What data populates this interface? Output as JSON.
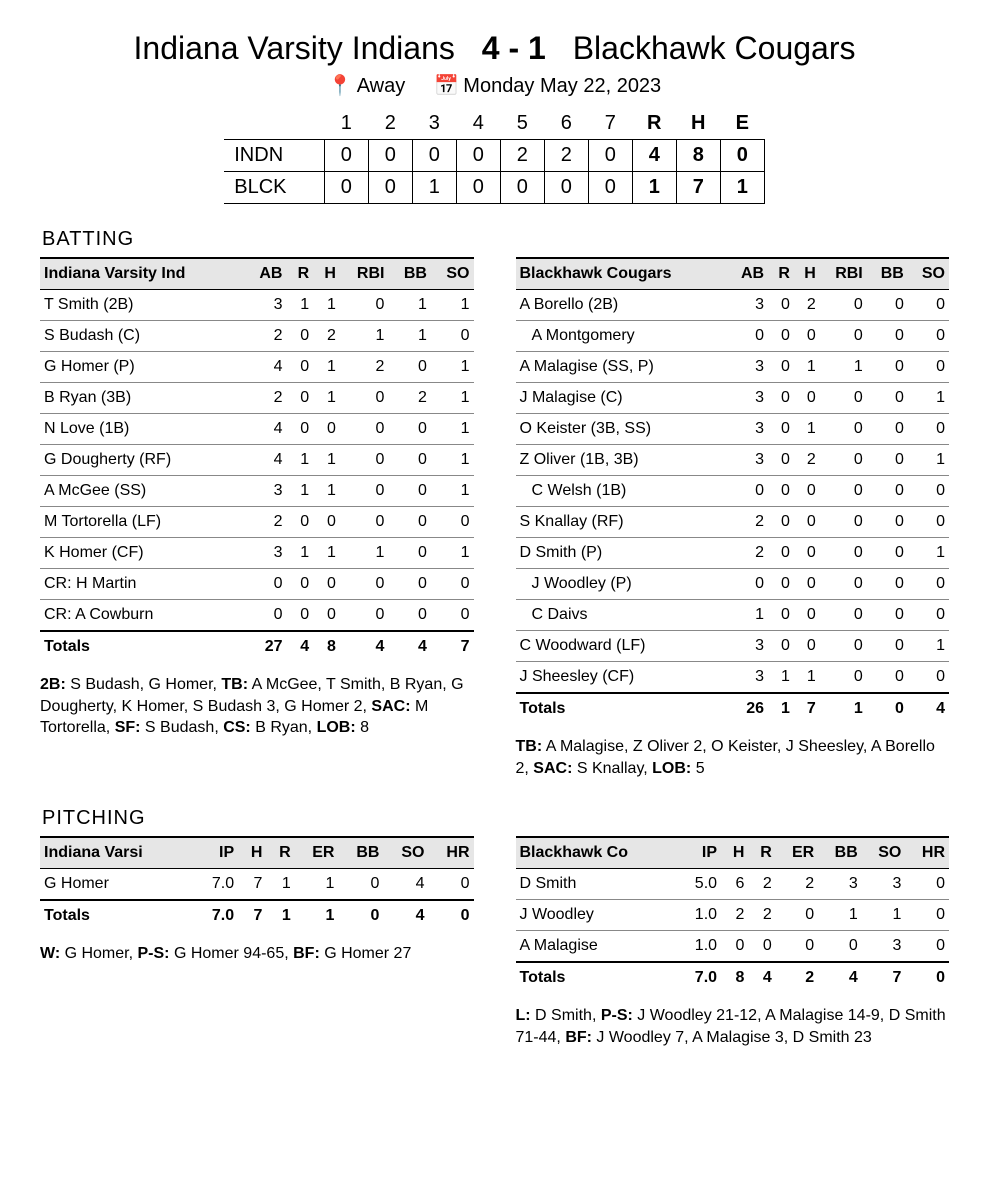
{
  "header": {
    "away_team": "Indiana Varsity Indians",
    "score": "4 - 1",
    "home_team": "Blackhawk Cougars",
    "location_label": "Away",
    "date_label": "Monday May 22, 2023"
  },
  "linescore": {
    "inning_headers": [
      "1",
      "2",
      "3",
      "4",
      "5",
      "6",
      "7"
    ],
    "rhe_headers": [
      "R",
      "H",
      "E"
    ],
    "rows": [
      {
        "code": "INDN",
        "innings": [
          "0",
          "0",
          "0",
          "0",
          "2",
          "2",
          "0"
        ],
        "rhe": [
          "4",
          "8",
          "0"
        ]
      },
      {
        "code": "BLCK",
        "innings": [
          "0",
          "0",
          "1",
          "0",
          "0",
          "0",
          "0"
        ],
        "rhe": [
          "1",
          "7",
          "1"
        ]
      }
    ]
  },
  "batting_title": "BATTING",
  "batting_columns": [
    "AB",
    "R",
    "H",
    "RBI",
    "BB",
    "SO"
  ],
  "batting": {
    "away": {
      "team_label": "Indiana Varsity Ind",
      "rows": [
        {
          "name": "T Smith (2B)",
          "v": [
            "3",
            "1",
            "1",
            "0",
            "1",
            "1"
          ]
        },
        {
          "name": "S Budash (C)",
          "v": [
            "2",
            "0",
            "2",
            "1",
            "1",
            "0"
          ]
        },
        {
          "name": "G Homer (P)",
          "v": [
            "4",
            "0",
            "1",
            "2",
            "0",
            "1"
          ]
        },
        {
          "name": "B Ryan (3B)",
          "v": [
            "2",
            "0",
            "1",
            "0",
            "2",
            "1"
          ]
        },
        {
          "name": "N Love (1B)",
          "v": [
            "4",
            "0",
            "0",
            "0",
            "0",
            "1"
          ]
        },
        {
          "name": "G Dougherty (RF)",
          "v": [
            "4",
            "1",
            "1",
            "0",
            "0",
            "1"
          ]
        },
        {
          "name": "A McGee (SS)",
          "v": [
            "3",
            "1",
            "1",
            "0",
            "0",
            "1"
          ]
        },
        {
          "name": "M Tortorella (LF)",
          "v": [
            "2",
            "0",
            "0",
            "0",
            "0",
            "0"
          ]
        },
        {
          "name": "K Homer (CF)",
          "v": [
            "3",
            "1",
            "1",
            "1",
            "0",
            "1"
          ]
        },
        {
          "name": "CR: H Martin",
          "v": [
            "0",
            "0",
            "0",
            "0",
            "0",
            "0"
          ]
        },
        {
          "name": "CR: A Cowburn",
          "v": [
            "0",
            "0",
            "0",
            "0",
            "0",
            "0"
          ]
        }
      ],
      "totals_label": "Totals",
      "totals": [
        "27",
        "4",
        "8",
        "4",
        "4",
        "7"
      ],
      "notes_html": "<b>2B:</b> S Budash, G Homer, <b>TB:</b> A McGee, T Smith, B Ryan, G Dougherty, K Homer, S Budash 3, G Homer 2, <b>SAC:</b> M Tortorella, <b>SF:</b> S Budash, <b>CS:</b> B Ryan, <b>LOB:</b> 8"
    },
    "home": {
      "team_label": "Blackhawk Cougars",
      "rows": [
        {
          "name": "A Borello (2B)",
          "v": [
            "3",
            "0",
            "2",
            "0",
            "0",
            "0"
          ]
        },
        {
          "name": "A Montgomery",
          "v": [
            "0",
            "0",
            "0",
            "0",
            "0",
            "0"
          ],
          "indent": true
        },
        {
          "name": "A Malagise (SS, P)",
          "v": [
            "3",
            "0",
            "1",
            "1",
            "0",
            "0"
          ]
        },
        {
          "name": "J Malagise (C)",
          "v": [
            "3",
            "0",
            "0",
            "0",
            "0",
            "1"
          ]
        },
        {
          "name": "O Keister (3B, SS)",
          "v": [
            "3",
            "0",
            "1",
            "0",
            "0",
            "0"
          ]
        },
        {
          "name": "Z Oliver (1B, 3B)",
          "v": [
            "3",
            "0",
            "2",
            "0",
            "0",
            "1"
          ]
        },
        {
          "name": "C Welsh (1B)",
          "v": [
            "0",
            "0",
            "0",
            "0",
            "0",
            "0"
          ],
          "indent": true
        },
        {
          "name": "S Knallay (RF)",
          "v": [
            "2",
            "0",
            "0",
            "0",
            "0",
            "0"
          ]
        },
        {
          "name": "D Smith (P)",
          "v": [
            "2",
            "0",
            "0",
            "0",
            "0",
            "1"
          ]
        },
        {
          "name": "J Woodley (P)",
          "v": [
            "0",
            "0",
            "0",
            "0",
            "0",
            "0"
          ],
          "indent": true
        },
        {
          "name": "C Daivs",
          "v": [
            "1",
            "0",
            "0",
            "0",
            "0",
            "0"
          ],
          "indent": true
        },
        {
          "name": "C Woodward (LF)",
          "v": [
            "3",
            "0",
            "0",
            "0",
            "0",
            "1"
          ]
        },
        {
          "name": "J Sheesley (CF)",
          "v": [
            "3",
            "1",
            "1",
            "0",
            "0",
            "0"
          ]
        }
      ],
      "totals_label": "Totals",
      "totals": [
        "26",
        "1",
        "7",
        "1",
        "0",
        "4"
      ],
      "notes_html": "<b>TB:</b> A Malagise, Z Oliver 2, O Keister, J Sheesley, A Borello 2, <b>SAC:</b> S Knallay, <b>LOB:</b> 5"
    }
  },
  "pitching_title": "PITCHING",
  "pitching_columns": [
    "IP",
    "H",
    "R",
    "ER",
    "BB",
    "SO",
    "HR"
  ],
  "pitching": {
    "away": {
      "team_label": "Indiana Varsi",
      "rows": [
        {
          "name": "G Homer",
          "v": [
            "7.0",
            "7",
            "1",
            "1",
            "0",
            "4",
            "0"
          ]
        }
      ],
      "totals_label": "Totals",
      "totals": [
        "7.0",
        "7",
        "1",
        "1",
        "0",
        "4",
        "0"
      ],
      "notes_html": "<b>W:</b> G Homer, <b>P-S:</b> G Homer 94-65, <b>BF:</b> G Homer 27"
    },
    "home": {
      "team_label": "Blackhawk Co",
      "rows": [
        {
          "name": "D Smith",
          "v": [
            "5.0",
            "6",
            "2",
            "2",
            "3",
            "3",
            "0"
          ]
        },
        {
          "name": "J Woodley",
          "v": [
            "1.0",
            "2",
            "2",
            "0",
            "1",
            "1",
            "0"
          ]
        },
        {
          "name": "A Malagise",
          "v": [
            "1.0",
            "0",
            "0",
            "0",
            "0",
            "3",
            "0"
          ]
        }
      ],
      "totals_label": "Totals",
      "totals": [
        "7.0",
        "8",
        "4",
        "2",
        "4",
        "7",
        "0"
      ],
      "notes_html": "<b>L:</b> D Smith, <b>P-S:</b> J Woodley 21-12, A Malagise 14-9, D Smith 71-44, <b>BF:</b> J Woodley 7, A Malagise 3, D Smith 23"
    }
  }
}
